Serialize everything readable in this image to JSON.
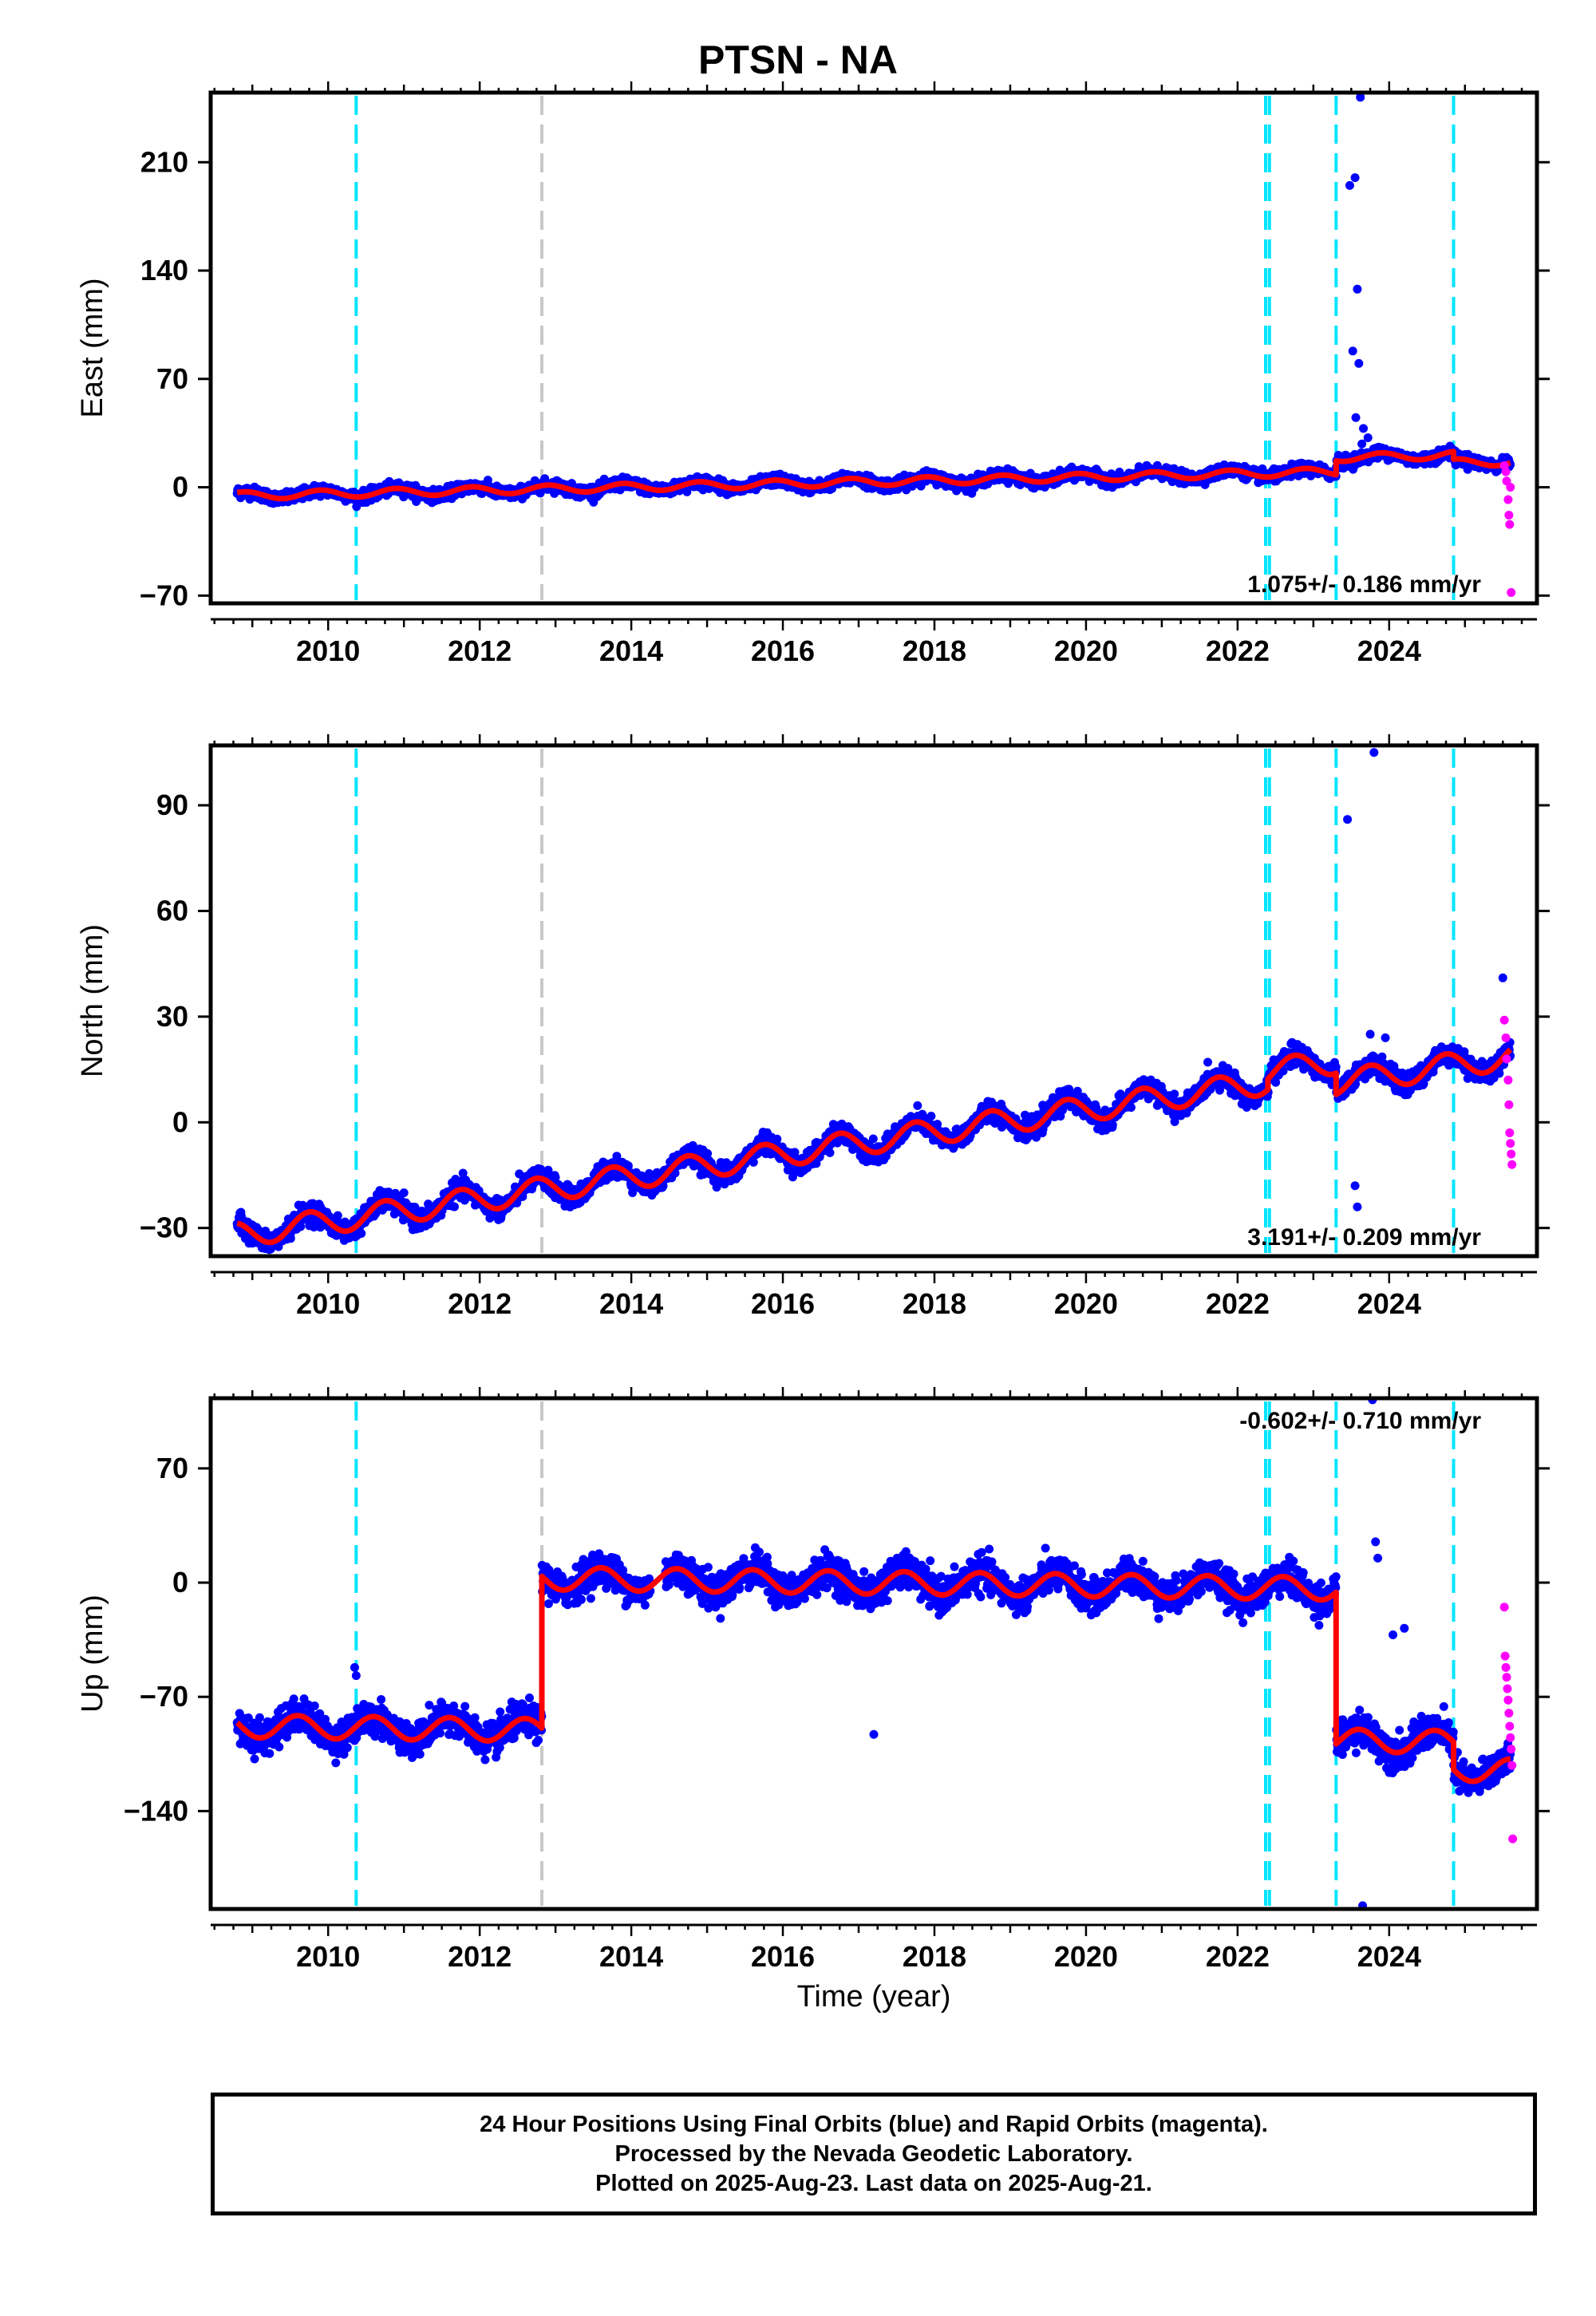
{
  "title": "PTSN - NA",
  "xlabel": "Time (year)",
  "footer": {
    "lines": [
      "24 Hour Positions Using Final Orbits (blue) and Rapid Orbits (magenta).",
      "Processed by the Nevada Geodetic Laboratory.",
      "Plotted on 2025-Aug-23. Last data on 2025-Aug-21."
    ]
  },
  "colors": {
    "final_orbits": "#0000ff",
    "rapid_orbits": "#ff00ff",
    "model": "#ff0000",
    "equipment_change": "#00e5ff",
    "other_event": "#c8c8c8"
  },
  "events": {
    "equipment_change": [
      2010.37,
      2022.37,
      2022.42,
      2023.3,
      2024.85
    ],
    "other_event": [
      2012.82
    ]
  },
  "chart_data": [
    {
      "type": "scatter",
      "component": "east",
      "ylabel": "East (mm)",
      "xlim": [
        2008.45,
        2025.95
      ],
      "ylim": [
        -75,
        255
      ],
      "yticks": [
        -70,
        0,
        70,
        140,
        210
      ],
      "ytick_labels": [
        "−70",
        "0",
        "70",
        "140",
        "210"
      ],
      "xticks": [
        2010,
        2012,
        2014,
        2016,
        2018,
        2020,
        2022,
        2024
      ],
      "rate_label": "1.075+/- 0.186 mm/yr",
      "rate_position": "bottom-right",
      "model": {
        "start": 2008.8,
        "end": 2025.6,
        "base": -5.5,
        "rate": 1.075,
        "annual_amplitude": 2.5,
        "phase": 0.65,
        "offsets": [
          {
            "t": 2023.3,
            "dy": 9
          },
          {
            "t": 2024.85,
            "dy": -5
          }
        ],
        "scatter_sd": 1.8
      },
      "outliers": [
        {
          "x": 2023.62,
          "y": 252
        },
        {
          "x": 2023.55,
          "y": 200
        },
        {
          "x": 2023.48,
          "y": 195
        },
        {
          "x": 2023.58,
          "y": 128
        },
        {
          "x": 2023.52,
          "y": 88
        },
        {
          "x": 2023.6,
          "y": 80
        },
        {
          "x": 2023.56,
          "y": 45
        },
        {
          "x": 2023.66,
          "y": 38
        },
        {
          "x": 2023.72,
          "y": 32
        },
        {
          "x": 2023.64,
          "y": 28
        }
      ],
      "rapid_points": {
        "x": [
          2025.52,
          2025.54,
          2025.55,
          2025.57,
          2025.58,
          2025.59,
          2025.6,
          2025.61
        ],
        "y": [
          14,
          10,
          4,
          -8,
          -18,
          -24,
          0,
          -68
        ]
      }
    },
    {
      "type": "scatter",
      "component": "north",
      "ylabel": "North (mm)",
      "xlim": [
        2008.45,
        2025.95
      ],
      "ylim": [
        -38,
        107
      ],
      "yticks": [
        -30,
        0,
        30,
        60,
        90
      ],
      "ytick_labels": [
        "−30",
        "0",
        "30",
        "60",
        "90"
      ],
      "xticks": [
        2010,
        2012,
        2014,
        2016,
        2018,
        2020,
        2022,
        2024
      ],
      "rate_label": "3.191+/- 0.209 mm/yr",
      "rate_position": "bottom-right",
      "model": {
        "start": 2008.8,
        "end": 2025.6,
        "base": -32,
        "rate": 3.191,
        "annual_amplitude": 3.5,
        "phase": 0.5,
        "offsets": [
          {
            "t": 2022.4,
            "dy": 3
          },
          {
            "t": 2023.3,
            "dy": -6
          }
        ],
        "scatter_sd": 1.4
      },
      "outliers": [
        {
          "x": 2023.8,
          "y": 105
        },
        {
          "x": 2023.45,
          "y": 86
        },
        {
          "x": 2023.55,
          "y": -18
        },
        {
          "x": 2023.58,
          "y": -24
        },
        {
          "x": 2023.75,
          "y": 25
        },
        {
          "x": 2023.95,
          "y": 24
        },
        {
          "x": 2025.5,
          "y": 41
        }
      ],
      "rapid_points": {
        "x": [
          2025.52,
          2025.54,
          2025.55,
          2025.57,
          2025.58,
          2025.59,
          2025.6,
          2025.61,
          2025.62
        ],
        "y": [
          29,
          24,
          18,
          12,
          5,
          -3,
          -6,
          -9,
          -12
        ]
      }
    },
    {
      "type": "scatter",
      "component": "up",
      "ylabel": "Up (mm)",
      "xlim": [
        2008.45,
        2025.95
      ],
      "ylim": [
        -200,
        113
      ],
      "yticks": [
        -140,
        -70,
        0,
        70
      ],
      "ytick_labels": [
        "−140",
        "−70",
        "0",
        "70"
      ],
      "xticks": [
        2010,
        2012,
        2014,
        2016,
        2018,
        2020,
        2022,
        2024
      ],
      "rate_label": "-0.602+/- 0.710 mm/yr",
      "rate_position": "top-right",
      "model": {
        "start": 2008.8,
        "end": 2025.6,
        "base": -88,
        "rate": -0.602,
        "annual_amplitude": 7,
        "phase": 0.35,
        "offsets": [
          {
            "t": 2012.82,
            "dy": 93
          },
          {
            "t": 2023.3,
            "dy": -93
          },
          {
            "t": 2024.85,
            "dy": -17
          }
        ],
        "scatter_sd": 5
      },
      "data_gap": [
        2014.25,
        2014.45
      ],
      "outliers": [
        {
          "x": 2010.35,
          "y": -52
        },
        {
          "x": 2010.37,
          "y": -57
        },
        {
          "x": 2017.2,
          "y": -93
        },
        {
          "x": 2023.65,
          "y": -198
        },
        {
          "x": 2023.78,
          "y": 112
        },
        {
          "x": 2023.82,
          "y": 25
        },
        {
          "x": 2023.85,
          "y": 15
        },
        {
          "x": 2024.05,
          "y": -32
        },
        {
          "x": 2024.2,
          "y": -28
        }
      ],
      "rapid_points": {
        "x": [
          2025.52,
          2025.53,
          2025.54,
          2025.55,
          2025.56,
          2025.57,
          2025.58,
          2025.59,
          2025.6,
          2025.61,
          2025.62,
          2025.63
        ],
        "y": [
          -15,
          -45,
          -52,
          -58,
          -65,
          -72,
          -80,
          -88,
          -95,
          -102,
          -112,
          -157
        ]
      }
    }
  ]
}
